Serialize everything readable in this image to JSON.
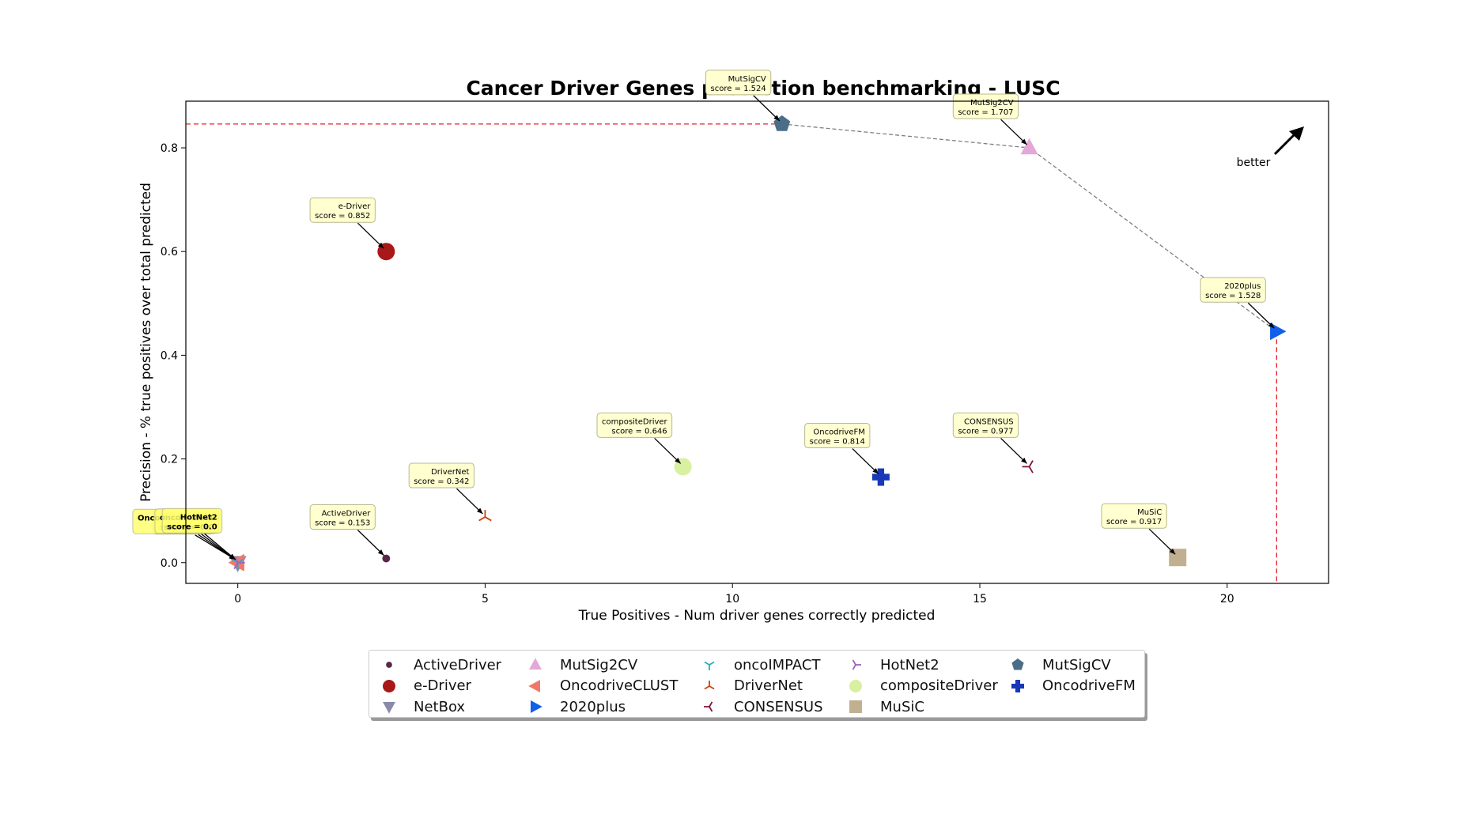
{
  "chart_data": {
    "type": "scatter",
    "title": "Cancer Driver Genes prediction benchmarking - LUSC",
    "xlabel": "True Positives - Num driver genes correctly predicted",
    "ylabel": "Precision - % true positives over total predicted",
    "xlim": [
      -1.05,
      22.05
    ],
    "ylim": [
      -0.04,
      0.89
    ],
    "xticks": [
      0,
      5,
      10,
      15,
      20
    ],
    "yticks": [
      0.0,
      0.2,
      0.4,
      0.6,
      0.8
    ],
    "grid": false,
    "legend_position": "bottom-center",
    "annotation_text": "better",
    "score_prefix": "score = ",
    "points": [
      {
        "name": "ActiveDriver",
        "x": 3,
        "y": 0.008,
        "score": "0.153",
        "marker": "circle-small",
        "color": "#5a2848"
      },
      {
        "name": "e-Driver",
        "x": 3,
        "y": 0.6,
        "score": "0.852",
        "marker": "circle",
        "color": "#a81818"
      },
      {
        "name": "NetBox",
        "x": 0,
        "y": 0.0,
        "score": "0.0",
        "marker": "triangle-down",
        "color": "#8a8aaa"
      },
      {
        "name": "MutSig2CV",
        "x": 16,
        "y": 0.8,
        "score": "1.707",
        "marker": "triangle-up",
        "color": "#e4a8d8"
      },
      {
        "name": "OncodriveCLUST",
        "x": 0,
        "y": 0.0,
        "score": "0.0",
        "marker": "triangle-left",
        "color": "#f07868"
      },
      {
        "name": "2020plus",
        "x": 21,
        "y": 0.446,
        "score": "1.528",
        "marker": "triangle-right",
        "color": "#1060e8"
      },
      {
        "name": "oncoIMPACT",
        "x": 0,
        "y": 0.0,
        "score": "0.0",
        "marker": "tri-down",
        "color": "#20b0c0"
      },
      {
        "name": "DriverNet",
        "x": 5,
        "y": 0.088,
        "score": "0.342",
        "marker": "tri-up",
        "color": "#d04010"
      },
      {
        "name": "CONSENSUS",
        "x": 16,
        "y": 0.185,
        "score": "0.977",
        "marker": "tri-left",
        "color": "#801838"
      },
      {
        "name": "HotNet2",
        "x": 0,
        "y": 0.0,
        "score": "0.0",
        "marker": "tri-right",
        "color": "#a060c0"
      },
      {
        "name": "compositeDriver",
        "x": 9,
        "y": 0.185,
        "score": "0.646",
        "marker": "circle",
        "color": "#d8f0a0"
      },
      {
        "name": "MuSiC",
        "x": 19,
        "y": 0.01,
        "score": "0.917",
        "marker": "square",
        "color": "#c0b090"
      },
      {
        "name": "MutSigCV",
        "x": 11,
        "y": 0.846,
        "score": "1.524",
        "marker": "pentagon",
        "color": "#4a6e88"
      },
      {
        "name": "OncodriveFM",
        "x": 13,
        "y": 0.165,
        "score": "0.814",
        "marker": "plus",
        "color": "#1838b8"
      }
    ],
    "pareto_front": [
      "MutSigCV",
      "MutSig2CV",
      "2020plus"
    ],
    "colors": {
      "frontier": "#808080",
      "guide": "#e8202a",
      "label_box": "#ffffd0",
      "label_box_highlight": "#ffff70"
    }
  }
}
